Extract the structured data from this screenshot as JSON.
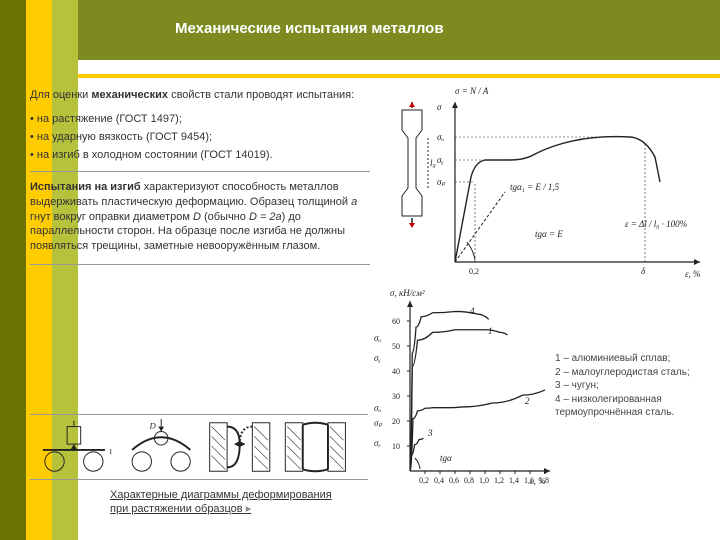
{
  "title": "Механические испытания металлов",
  "intro_pre": "Для оценки ",
  "intro_bold": "механических",
  "intro_post": " свойств стали проводят испытания:",
  "tests": [
    "на растяжение (ГОСТ 1497);",
    "на ударную вязкость (ГОСТ 9454);",
    "на изгиб в холодном состоянии (ГОСТ 14019)."
  ],
  "para2_boldlead": "Испытания на изгиб",
  "para2_body": " характеризуют способность металлов выдерживать пластическую деформацию. Образец толщиной ",
  "para2_a": "a",
  "para2_mid1": " гнут вокруг оправки диаметром ",
  "para2_D": "D",
  "para2_mid2": " (обычно ",
  "para2_eq": "D = 2a",
  "para2_mid3": ") до параллельности сторон. На образце после изгиба не должны появляться трещины, заметные невооружённым глазом.",
  "legend": {
    "l1": "1 – алюминиевый сплав;",
    "l2": "2 – малоуглеродистая сталь;",
    "l3": "3 – чугун;",
    "l4": "4 – низколегированная термоупрочнённая сталь."
  },
  "caption_line1": "Характерные диаграммы деформирования",
  "caption_line2": "при растяжении образцов",
  "chart1": {
    "formula_sigma": "σ = N / A",
    "formula_eps": "ε = Δl / l₀ · 100%",
    "ylabs": [
      "σᵤ",
      "σᵧ",
      "σₚ"
    ],
    "xticks": [
      "0,2",
      "δ"
    ],
    "xaxis": "ε, %",
    "tg1": "tgα₁ = E / 1,5",
    "tg2": "tgα = E",
    "axes_color": "#222222",
    "bg": "#f4f4ee"
  },
  "chart2": {
    "ylabel": "σ, кН/см²",
    "xlabel": "ε, %",
    "yticks": [
      10,
      20,
      30,
      40,
      50,
      60
    ],
    "xticks": [
      0.2,
      0.4,
      0.6,
      0.8,
      1.0,
      1.2,
      1.4,
      1.6,
      1.8
    ],
    "sigma_labels": [
      "σᵤ",
      "σᵧ",
      "σₚ",
      "σₑ"
    ],
    "series_labels": [
      "1",
      "2",
      "3",
      "4"
    ],
    "tg": "tgα",
    "curves": {
      "1": [
        [
          0,
          0
        ],
        [
          0.03,
          40
        ],
        [
          0.1,
          50
        ],
        [
          0.3,
          53
        ],
        [
          0.6,
          54
        ],
        [
          1.0,
          54
        ],
        [
          1.2,
          53
        ],
        [
          1.3,
          52
        ]
      ],
      "2": [
        [
          0,
          0
        ],
        [
          0.04,
          20
        ],
        [
          0.1,
          23
        ],
        [
          0.2,
          24
        ],
        [
          0.3,
          24.2
        ],
        [
          0.5,
          24.2
        ],
        [
          0.7,
          24.5
        ],
        [
          1.1,
          26
        ],
        [
          1.5,
          29
        ],
        [
          1.8,
          31
        ]
      ],
      "3": [
        [
          0,
          0
        ],
        [
          0.02,
          6
        ],
        [
          0.06,
          10
        ],
        [
          0.12,
          12
        ],
        [
          0.18,
          12.5
        ]
      ],
      "4": [
        [
          0,
          0
        ],
        [
          0.03,
          45
        ],
        [
          0.08,
          55
        ],
        [
          0.15,
          59
        ],
        [
          0.3,
          60.5
        ],
        [
          0.6,
          61
        ],
        [
          0.9,
          60
        ],
        [
          1.05,
          58
        ]
      ]
    },
    "xlim": [
      0,
      1.8
    ],
    "ylim": [
      0,
      65
    ],
    "axes_color": "#222222"
  },
  "colors": {
    "olive_dark": "#6b7200",
    "yellow": "#ffcc00",
    "olive_light": "#b6c23c",
    "olive_mid": "#7d8a1f",
    "text": "#333333",
    "stroke": "#222222"
  }
}
